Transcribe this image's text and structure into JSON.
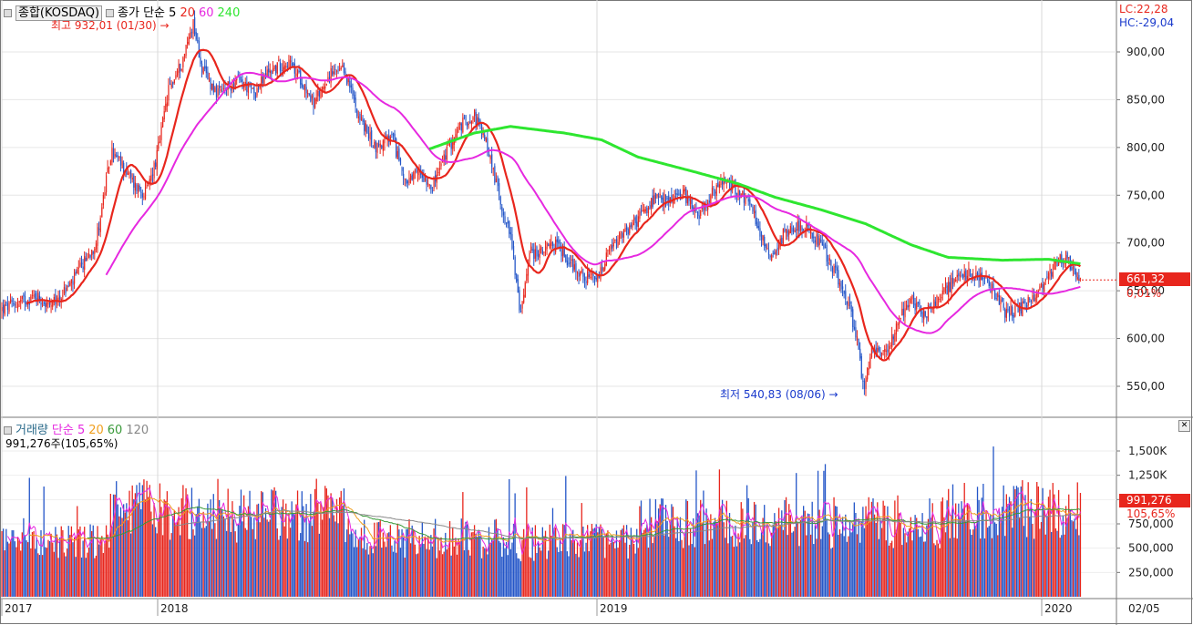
{
  "price_panel": {
    "legend": {
      "title": "종합(KOSDAQ)",
      "ma_label": "종가 단순 5",
      "ma20": "20",
      "ma60": "60",
      "ma240": "240"
    },
    "high_note": "최고 932,01 (01/30)",
    "low_note": "최저 540,83 (08/06)",
    "lc": "LC:22,28",
    "hc": "HC:-29,04",
    "last_price": "661,32",
    "last_change": "0,01%",
    "y_ticks": [
      "900,00",
      "850,00",
      "800,00",
      "750,00",
      "700,00",
      "650,00",
      "600,00",
      "550,00"
    ]
  },
  "volume_panel": {
    "legend": {
      "title": "거래량",
      "ma_label": "단순 5",
      "ma20": "20",
      "ma60": "60",
      "ma120": "120"
    },
    "current": "991,276주(105,65%)",
    "last_volume": "991,276",
    "last_ratio": "105,65%",
    "y_ticks": [
      "1,500K",
      "1,250K",
      "1,000K",
      "750,000",
      "500,000",
      "250,000"
    ]
  },
  "x_axis": {
    "labels": [
      "2017",
      "2018",
      "2019",
      "2020"
    ],
    "right_label": "02/05"
  },
  "colors": {
    "up": "#e8261d",
    "down": "#2456c8",
    "ma5": "#e8261d",
    "ma20": "#e629e0",
    "ma60_price": "#2ee630",
    "vol_ma5": "#e629e0",
    "vol_ma20": "#f0a020",
    "vol_ma60": "#3a9a3a",
    "vol_ma120": "#888888"
  },
  "chart_data": [
    {
      "type": "line",
      "title": "종합(KOSDAQ)",
      "series": [
        {
          "name": "종가",
          "x": [
            "2017-11",
            "2017-12",
            "2018-01",
            "2018-01-30",
            "2018-03",
            "2018-05",
            "2018-06",
            "2018-08",
            "2018-09",
            "2018-10",
            "2018-11",
            "2018-12",
            "2019-01",
            "2019-02",
            "2019-03",
            "2019-04",
            "2019-05",
            "2019-06",
            "2019-07",
            "2019-08-06",
            "2019-09",
            "2019-10",
            "2019-11",
            "2019-12",
            "2020-01",
            "2020-02-05"
          ],
          "values": [
            630,
            775,
            770,
            932,
            870,
            865,
            830,
            770,
            830,
            650,
            690,
            665,
            700,
            750,
            745,
            760,
            710,
            700,
            650,
            540,
            610,
            640,
            660,
            640,
            685,
            661.32
          ]
        }
      ],
      "ylim": [
        520,
        940
      ],
      "annotations": [
        "최고 932,01 (01/30)",
        "최저 540,83 (08/06)"
      ]
    },
    {
      "type": "bar",
      "title": "거래량",
      "series": [
        {
          "name": "거래량",
          "x": [
            "2017",
            "2018",
            "2019",
            "2020"
          ],
          "values": [
            600000,
            900000,
            700000,
            991276
          ]
        }
      ],
      "ylim": [
        0,
        1750000
      ]
    }
  ]
}
